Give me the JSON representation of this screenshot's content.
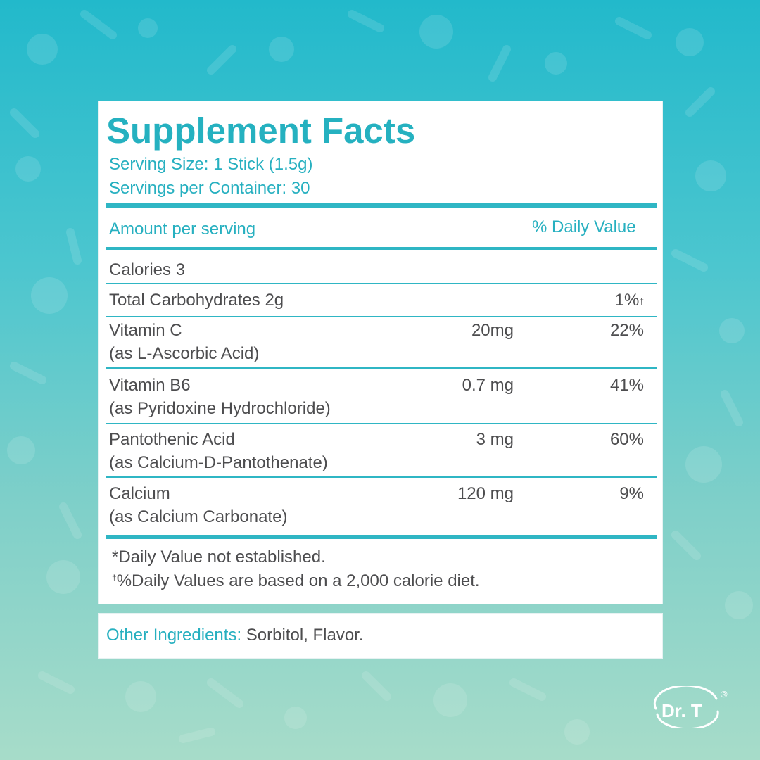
{
  "colors": {
    "accent": "#27b0c0",
    "text": "#4d4d4f",
    "bg_top": "#22b9cb",
    "bg_bottom": "#a7dcc9"
  },
  "panel": {
    "title": "Supplement Facts",
    "serving_size": "Serving Size: 1 Stick (1.5g)",
    "servings_per_container": "Servings per Container: 30",
    "header_amount": "Amount per serving",
    "header_dv": "% Daily Value",
    "calories": "Calories 3",
    "carbs_label": "Total Carbohydrates 2g",
    "carbs_dv": "1%",
    "carbs_dv_mark": "†",
    "nutrients": [
      {
        "name": "Vitamin C",
        "source": "(as L-Ascorbic Acid)",
        "amount": "20mg",
        "dv": "22%"
      },
      {
        "name": "Vitamin B6",
        "source": "(as Pyridoxine Hydrochloride)",
        "amount": "0.7 mg",
        "dv": "41%"
      },
      {
        "name": "Pantothenic Acid",
        "source": "(as Calcium-D-Pantothenate)",
        "amount": "3 mg",
        "dv": "60%"
      },
      {
        "name": "Calcium",
        "source": "(as Calcium Carbonate)",
        "amount": "120 mg",
        "dv": "9%"
      }
    ],
    "footnote_1": "*Daily Value not established.",
    "footnote_2_mark": "†",
    "footnote_2": "%Daily Values are based on a 2,000 calorie diet."
  },
  "other_ingredients": {
    "label": "Other Ingredients:",
    "value": " Sorbitol, Flavor."
  },
  "logo": {
    "text": "Dr. T",
    "registered": "®",
    "icon": "dr-t-logo"
  }
}
